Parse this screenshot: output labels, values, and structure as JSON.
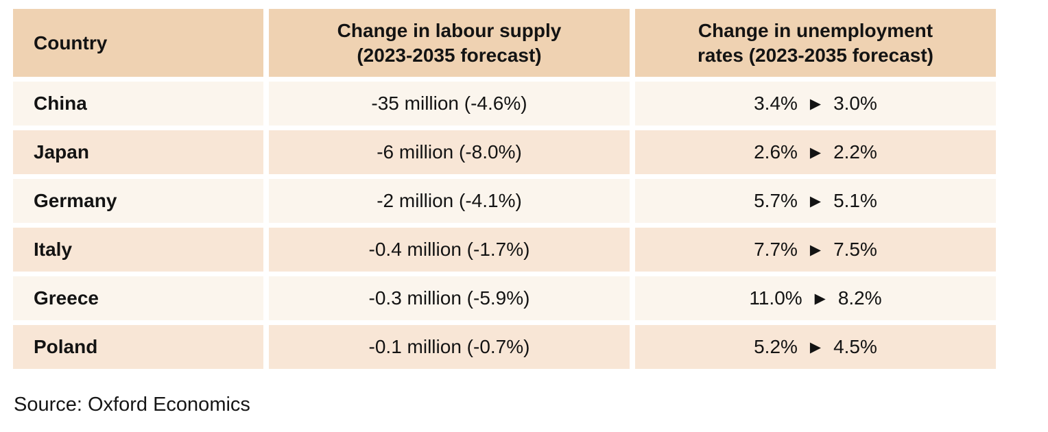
{
  "table": {
    "headers": {
      "country": "Country",
      "labour_supply": "Change in labour supply\n(2023-2035 forecast)",
      "unemployment": "Change in unemployment\nrates (2023-2035 forecast)"
    },
    "rows": [
      {
        "country": "China",
        "labour_supply": "-35 million (-4.6%)",
        "unemployment_from": "3.4%",
        "unemployment_to": "3.0%"
      },
      {
        "country": "Japan",
        "labour_supply": "-6 million (-8.0%)",
        "unemployment_from": "2.6%",
        "unemployment_to": "2.2%"
      },
      {
        "country": "Germany",
        "labour_supply": "-2 million (-4.1%)",
        "unemployment_from": "5.7%",
        "unemployment_to": "5.1%"
      },
      {
        "country": "Italy",
        "labour_supply": "-0.4 million (-1.7%)",
        "unemployment_from": "7.7%",
        "unemployment_to": "7.5%"
      },
      {
        "country": "Greece",
        "labour_supply": "-0.3 million (-5.9%)",
        "unemployment_from": "11.0%",
        "unemployment_to": "8.2%"
      },
      {
        "country": "Poland",
        "labour_supply": "-0.1 million (-0.7%)",
        "unemployment_from": "5.2%",
        "unemployment_to": "4.5%"
      }
    ]
  },
  "icons": {
    "arrow_right": "▶"
  },
  "colors": {
    "header_bg": "#efd2b2",
    "row_light_bg": "#fbf5ed",
    "row_peach_bg": "#f8e6d6",
    "text": "#131313",
    "page_bg": "#ffffff"
  },
  "source": "Source: Oxford Economics",
  "chart_data": {
    "type": "table",
    "title": "",
    "columns": [
      "Country",
      "Change in labour supply (2023-2035 forecast)",
      "Change in unemployment rates (2023-2035 forecast)"
    ],
    "rows": [
      [
        "China",
        "-35 million (-4.6%)",
        "3.4% → 3.0%"
      ],
      [
        "Japan",
        "-6 million (-8.0%)",
        "2.6% → 2.2%"
      ],
      [
        "Germany",
        "-2 million (-4.1%)",
        "5.7% → 5.1%"
      ],
      [
        "Italy",
        "-0.4 million (-1.7%)",
        "7.7% → 7.5%"
      ],
      [
        "Greece",
        "-0.3 million (-5.9%)",
        "11.0% → 8.2%"
      ],
      [
        "Poland",
        "-0.1 million (-0.7%)",
        "5.2% → 4.5%"
      ]
    ],
    "labour_supply_change_millions": [
      -35,
      -6,
      -2,
      -0.4,
      -0.3,
      -0.1
    ],
    "labour_supply_change_pct": [
      -4.6,
      -8.0,
      -4.1,
      -1.7,
      -5.9,
      -0.7
    ],
    "unemployment_2023_pct": [
      3.4,
      2.6,
      5.7,
      7.7,
      11.0,
      5.2
    ],
    "unemployment_2035_pct": [
      3.0,
      2.2,
      5.1,
      7.5,
      8.2,
      4.5
    ],
    "source": "Source: Oxford Economics"
  }
}
